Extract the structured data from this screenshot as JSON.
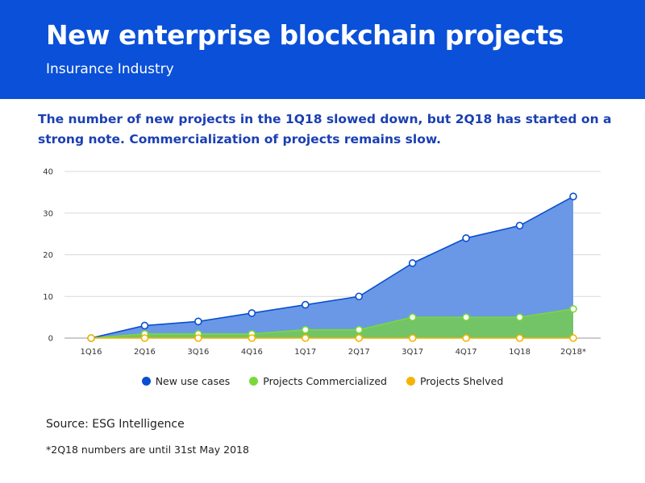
{
  "header": {
    "title": "New enterprise blockchain projects",
    "subtitle": "Insurance Industry",
    "background_color": "#0a50d8"
  },
  "note": "The number of new projects in the 1Q18 slowed down, but 2Q18 has started on a strong note. Commercialization of projects remains slow.",
  "chart_data": {
    "type": "area",
    "categories": [
      "1Q16",
      "2Q16",
      "3Q16",
      "4Q16",
      "1Q17",
      "2Q17",
      "3Q17",
      "4Q17",
      "1Q18",
      "2Q18*"
    ],
    "ylim": [
      0,
      40
    ],
    "yticks": [
      0,
      10,
      20,
      30,
      40
    ],
    "grid": true,
    "legend_position": "bottom",
    "series": [
      {
        "name": "New use cases",
        "values": [
          0,
          3,
          4,
          6,
          8,
          10,
          18,
          24,
          27,
          34
        ],
        "color": "#0a4fd0",
        "fill": "#6a98e6"
      },
      {
        "name": "Projects Commercialized",
        "values": [
          0,
          1,
          1,
          1,
          2,
          2,
          5,
          5,
          5,
          7
        ],
        "color": "#7ad93a",
        "fill": "#72c466"
      },
      {
        "name": "Projects Shelved",
        "values": [
          0,
          0,
          0,
          0,
          0,
          0,
          0,
          0,
          0,
          0
        ],
        "color": "#f4b400",
        "fill": "#f4b400"
      }
    ]
  },
  "source": "Source: ESG Intelligence",
  "footnote": "*2Q18 numbers are until 31st May 2018"
}
